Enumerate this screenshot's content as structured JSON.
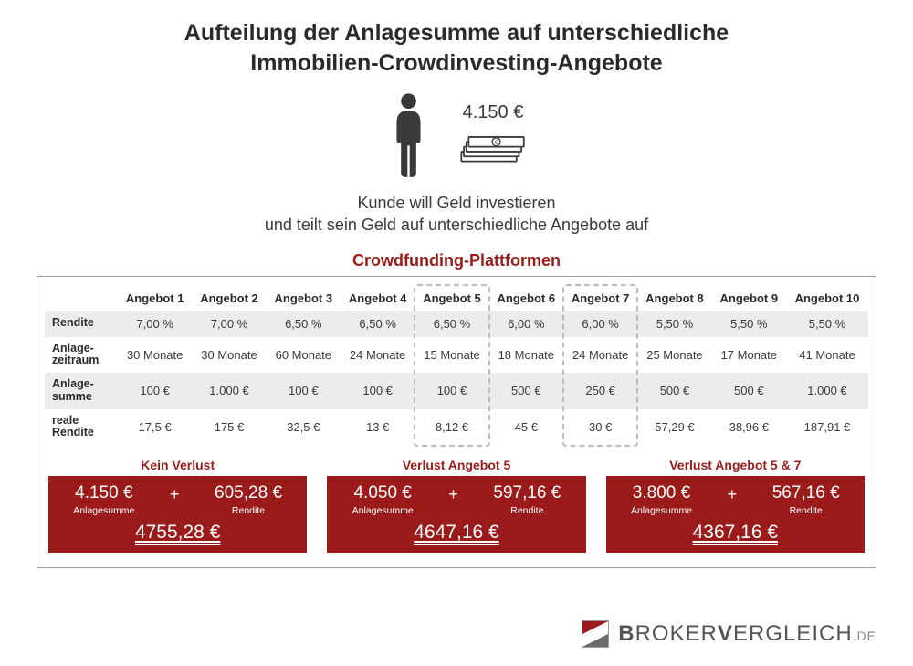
{
  "colors": {
    "accent_red": "#9b1b1b",
    "icon_dark": "#3a3a3a",
    "band_gray": "#ececec",
    "dash_gray": "#bdbdbd",
    "panel_border": "#999999"
  },
  "title_line1": "Aufteilung der Anlagesumme auf unterschiedliche",
  "title_line2": "Immobilien-Crowdinvesting-Angebote",
  "hero": {
    "amount": "4.150 €"
  },
  "subtitle_line1": "Kunde will Geld investieren",
  "subtitle_line2": "und teilt sein Geld auf unterschiedliche Angebote auf",
  "section_label": "Crowdfunding-Plattformen",
  "table": {
    "headers": [
      "Angebot 1",
      "Angebot 2",
      "Angebot 3",
      "Angebot 4",
      "Angebot 5",
      "Angebot 6",
      "Angebot 7",
      "Angebot 8",
      "Angebot 9",
      "Angebot 10"
    ],
    "rows": [
      {
        "label": "Rendite",
        "cells": [
          "7,00 %",
          "7,00 %",
          "6,50 %",
          "6,50 %",
          "6,50 %",
          "6,00 %",
          "6,00 %",
          "5,50 %",
          "5,50 %",
          "5,50 %"
        ]
      },
      {
        "label": "Anlage-\nzeitraum",
        "cells": [
          "30 Monate",
          "30 Monate",
          "60 Monate",
          "24 Monate",
          "15 Monate",
          "18 Monate",
          "24 Monate",
          "25 Monate",
          "17 Monate",
          "41 Monate"
        ]
      },
      {
        "label": "Anlage-\nsumme",
        "cells": [
          "100 €",
          "1.000 €",
          "100 €",
          "100 €",
          "100 €",
          "500 €",
          "250 €",
          "500 €",
          "500 €",
          "1.000 €"
        ]
      },
      {
        "label": "reale\nRendite",
        "cells": [
          "17,5 €",
          "175 €",
          "32,5 €",
          "13 €",
          "8,12 €",
          "45 €",
          "30 €",
          "57,29 €",
          "38,96 €",
          "187,91 €"
        ]
      }
    ],
    "highlight_cols": [
      5,
      7
    ]
  },
  "scenarios": [
    {
      "label": "Kein Verlust",
      "sum": "4.150 €",
      "sum_label": "Anlagesumme",
      "ret": "605,28 €",
      "ret_label": "Rendite",
      "total": "4755,28 €"
    },
    {
      "label": "Verlust Angebot 5",
      "sum": "4.050 €",
      "sum_label": "Anlagesumme",
      "ret": "597,16 €",
      "ret_label": "Rendite",
      "total": "4647,16 €"
    },
    {
      "label": "Verlust Angebot 5 & 7",
      "sum": "3.800 €",
      "sum_label": "Anlagesumme",
      "ret": "567,16 €",
      "ret_label": "Rendite",
      "total": "4367,16 €"
    }
  ],
  "footer": {
    "brand1": "B",
    "brand2": "ROKER",
    "brand3": "V",
    "brand4": "ERGLEICH",
    "tld": ".DE"
  }
}
